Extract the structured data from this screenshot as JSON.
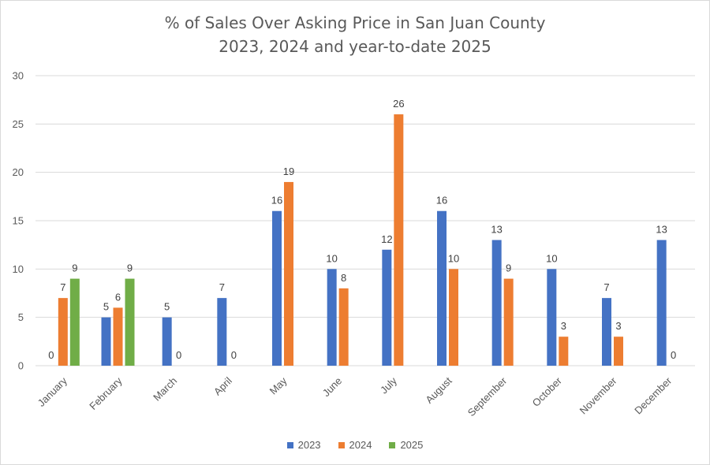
{
  "chart_data": {
    "type": "bar",
    "title": "% of Sales Over Asking Price in San Juan County",
    "subtitle": "2023, 2024 and year-to-date 2025",
    "xlabel": "",
    "ylabel": "",
    "ylim": [
      0,
      30
    ],
    "yticks": [
      0,
      5,
      10,
      15,
      20,
      25,
      30
    ],
    "grid": true,
    "legend": "bottom",
    "categories": [
      "January",
      "February",
      "March",
      "April",
      "May",
      "June",
      "July",
      "August",
      "September",
      "October",
      "November",
      "December"
    ],
    "series": [
      {
        "name": "2023",
        "color": "#4472c4",
        "values": [
          0,
          5,
          5,
          7,
          16,
          10,
          12,
          16,
          13,
          10,
          7,
          13
        ]
      },
      {
        "name": "2024",
        "color": "#ed7d31",
        "values": [
          7,
          6,
          0,
          0,
          19,
          8,
          26,
          10,
          9,
          3,
          3,
          0
        ]
      },
      {
        "name": "2025",
        "color": "#70ad47",
        "values": [
          9,
          9,
          null,
          null,
          null,
          null,
          null,
          null,
          null,
          null,
          null,
          null
        ]
      }
    ]
  }
}
